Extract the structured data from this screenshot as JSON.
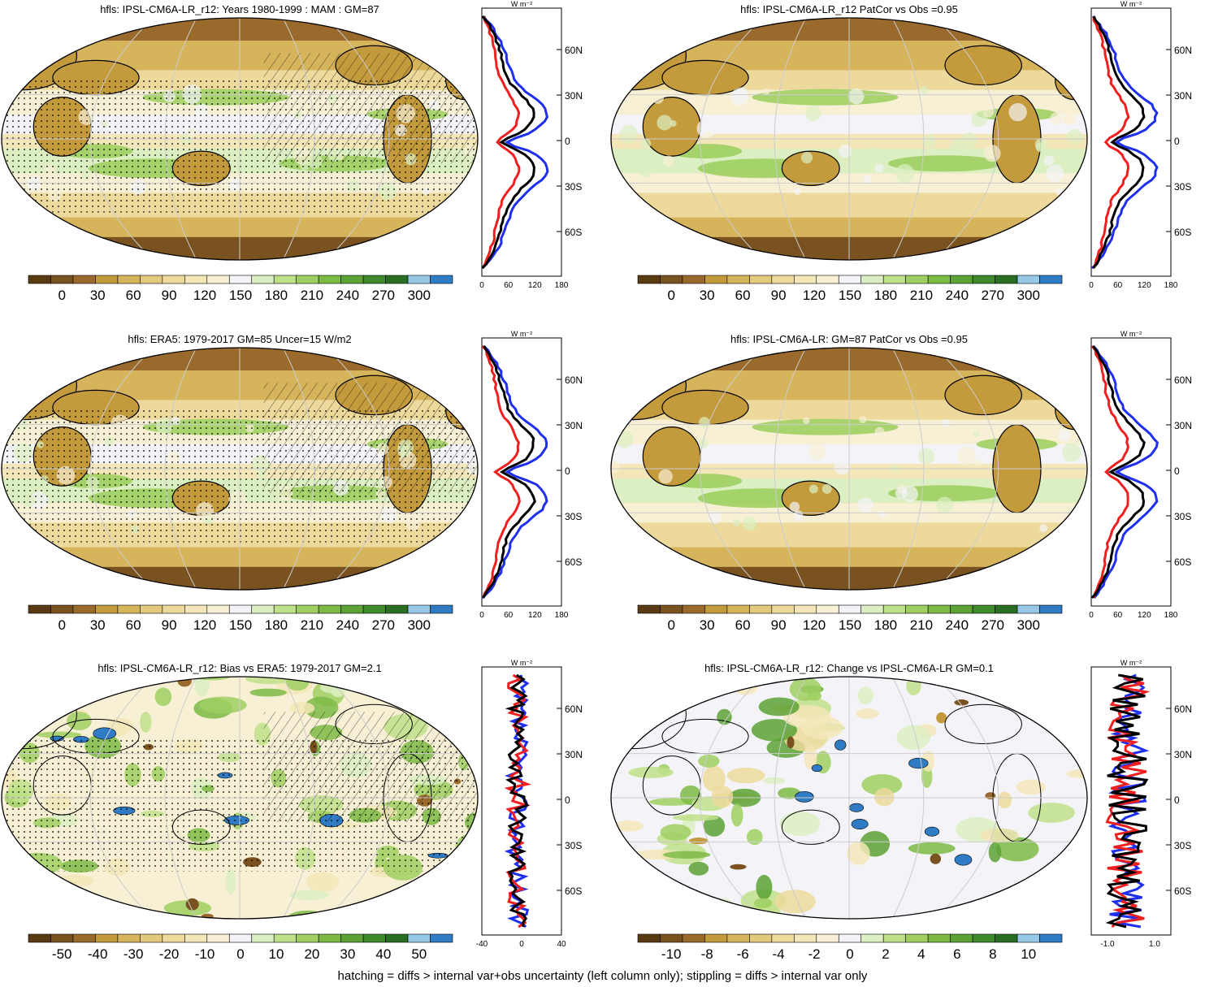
{
  "footnote": "hatching = diffs > internal var+obs uncertainty (left column only); stippling = diffs > internal var only",
  "colors": {
    "main_scale": [
      "#5a3a12",
      "#7a5220",
      "#996a2c",
      "#c39a3c",
      "#d6b45c",
      "#e3c97e",
      "#ecd99b",
      "#f3e6b8",
      "#f8f0d5",
      "#f4f4f8",
      "#dcefc2",
      "#bfe08a",
      "#9fcf62",
      "#7cba45",
      "#5ca235",
      "#3f8a2b",
      "#2a6e24",
      "#97c8e8",
      "#2f7bc4"
    ],
    "diff_scale": [
      "#5a3a12",
      "#7a5220",
      "#996a2c",
      "#c39a3c",
      "#d6b45c",
      "#e3c97e",
      "#ecd99b",
      "#f3e6b8",
      "#f8f0d5",
      "#f4f4f8",
      "#dcefc2",
      "#bfe08a",
      "#9fcf62",
      "#7cba45",
      "#5ca235",
      "#3f8a2b",
      "#2a6e24",
      "#97c8e8",
      "#2f7bc4"
    ],
    "profile_model": "#000000",
    "profile_obs": "#1f2ff0",
    "profile_other": "#f01f1f"
  },
  "lat_labels": [
    "60N",
    "30N",
    "0",
    "30S",
    "60S"
  ],
  "profile_units": "W m⁻²",
  "panels": [
    {
      "id": "p1",
      "title": "hfls: IPSL-CM6A-LR_r12: Years 1980-1999 : MAM : GM=87",
      "colorbar_ticks": [
        "0",
        "30",
        "60",
        "90",
        "120",
        "150",
        "180",
        "210",
        "240",
        "270",
        "300"
      ],
      "profile_xticks": [
        "0",
        "60",
        "120",
        "180"
      ],
      "stipple": true,
      "hatch": true,
      "kind": "mean"
    },
    {
      "id": "p2",
      "title": "hfls: IPSL-CM6A-LR_r12 PatCor vs Obs =0.95",
      "colorbar_ticks": [
        "0",
        "30",
        "60",
        "90",
        "120",
        "150",
        "180",
        "210",
        "240",
        "270",
        "300"
      ],
      "profile_xticks": [
        "0",
        "60",
        "120",
        "180"
      ],
      "stipple": false,
      "hatch": false,
      "kind": "mean"
    },
    {
      "id": "p3",
      "title": "hfls: ERA5: 1979-2017 GM=85 Uncer=15 W/m2",
      "colorbar_ticks": [
        "0",
        "30",
        "60",
        "90",
        "120",
        "150",
        "180",
        "210",
        "240",
        "270",
        "300"
      ],
      "profile_xticks": [
        "0",
        "60",
        "120",
        "180"
      ],
      "stipple": true,
      "hatch": true,
      "kind": "mean"
    },
    {
      "id": "p4",
      "title": "hfls: IPSL-CM6A-LR: GM=87 PatCor vs Obs =0.95",
      "colorbar_ticks": [
        "0",
        "30",
        "60",
        "90",
        "120",
        "150",
        "180",
        "210",
        "240",
        "270",
        "300"
      ],
      "profile_xticks": [
        "0",
        "60",
        "120",
        "180"
      ],
      "stipple": false,
      "hatch": false,
      "kind": "mean"
    },
    {
      "id": "p5",
      "title": "hfls: IPSL-CM6A-LR_r12: Bias vs ERA5: 1979-2017 GM=2.1",
      "colorbar_ticks": [
        "-50",
        "-40",
        "-30",
        "-20",
        "-10",
        "0",
        "10",
        "20",
        "30",
        "40",
        "50"
      ],
      "profile_xticks": [
        "-40",
        "0",
        "40"
      ],
      "stipple": true,
      "hatch": true,
      "kind": "diff"
    },
    {
      "id": "p6",
      "title": "hfls: IPSL-CM6A-LR_r12: Change vs IPSL-CM6A-LR GM=0.1",
      "colorbar_ticks": [
        "-10",
        "-8",
        "-6",
        "-4",
        "-2",
        "0",
        "2",
        "4",
        "6",
        "8",
        "10"
      ],
      "profile_xticks": [
        "-1.0",
        "1.0"
      ],
      "stipple": false,
      "hatch": false,
      "kind": "change"
    }
  ]
}
